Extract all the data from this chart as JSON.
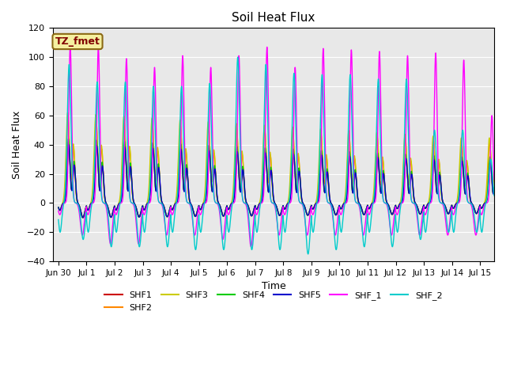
{
  "title": "Soil Heat Flux",
  "xlabel": "Time",
  "ylabel": "Soil Heat Flux",
  "ylim": [
    -40,
    120
  ],
  "yticks": [
    -40,
    -20,
    0,
    20,
    40,
    60,
    80,
    100,
    120
  ],
  "bg_color": "#e8e8e8",
  "annotation_text": "TZ_fmet",
  "annotation_bg": "#f5f0a0",
  "annotation_border": "#8B6914",
  "annotation_text_color": "#800000",
  "series": [
    {
      "name": "SHF1",
      "color": "#cc0000"
    },
    {
      "name": "SHF2",
      "color": "#ff8800"
    },
    {
      "name": "SHF3",
      "color": "#cccc00"
    },
    {
      "name": "SHF4",
      "color": "#00cc00"
    },
    {
      "name": "SHF5",
      "color": "#0000cc"
    },
    {
      "name": "SHF_1",
      "color": "#ff00ff"
    },
    {
      "name": "SHF_2",
      "color": "#00cccc"
    }
  ],
  "xtick_labels": [
    "Jun 30",
    "Jul 1",
    "Jul 2",
    "Jul 3",
    "Jul 4",
    "Jul 5",
    "Jul 6",
    "Jul 7",
    "Jul 8",
    "Jul 9",
    "Jul 10",
    "Jul 11",
    "Jul 12",
    "Jul 13",
    "Jul 14",
    "Jul 15"
  ],
  "xtick_positions": [
    0,
    1,
    2,
    3,
    4,
    5,
    6,
    7,
    8,
    9,
    10,
    11,
    12,
    13,
    14,
    15
  ]
}
